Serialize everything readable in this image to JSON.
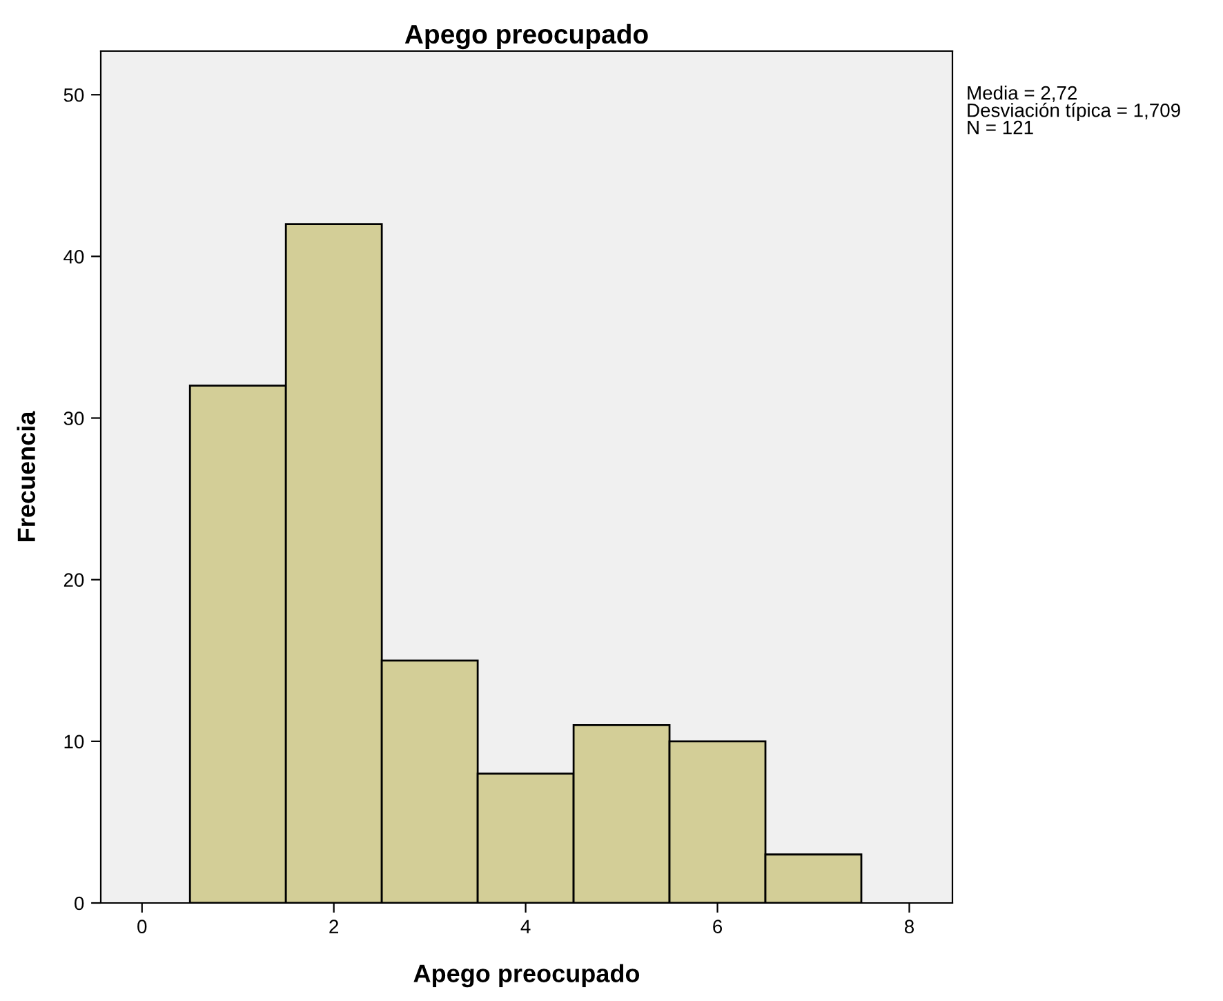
{
  "chart_data": {
    "type": "histogram",
    "title": "Apego preocupado",
    "xlabel": "Apego preocupado",
    "ylabel": "Frecuencia",
    "bins": [
      0.5,
      1.5,
      2.5,
      3.5,
      4.5,
      5.5,
      6.5,
      7.5
    ],
    "values": [
      32,
      42,
      15,
      8,
      11,
      10,
      3
    ],
    "color": "#d3ce97",
    "xlim": [
      -0.43,
      8.45
    ],
    "xticks": [
      0,
      2,
      4,
      6,
      8
    ],
    "ylim": [
      0,
      52.7
    ],
    "yticks": [
      0,
      10,
      20,
      30,
      40,
      50
    ],
    "grid": false,
    "annotations": [
      "Media = 2,72\nDesviación típica = 1,709\nN = 121"
    ]
  }
}
